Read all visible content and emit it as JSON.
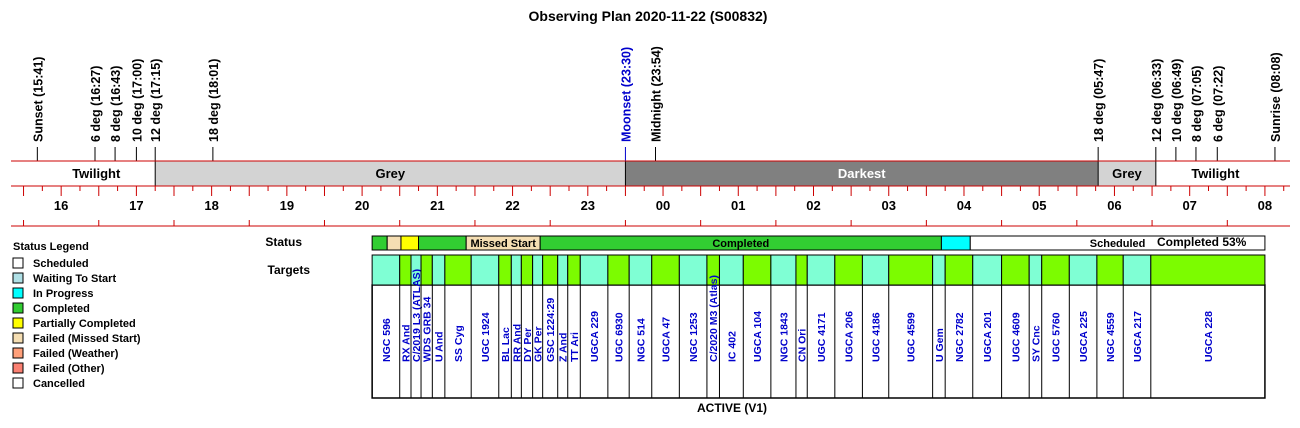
{
  "chart_data": {
    "type": "timeline",
    "title": "Observing Plan 2020-11-22 (S00832)",
    "footer": "ACTIVE (V1)",
    "completion_text": "Completed 53%",
    "row_labels": {
      "status": "Status",
      "targets": "Targets"
    },
    "colors": {
      "twilight": "#ffffff",
      "grey": "#d3d3d3",
      "darkest": "#808080",
      "completed": "#32cd32",
      "partially_completed": "#ffff00",
      "failed_missed_start": "#f5deb3",
      "in_progress": "#00ffff",
      "scheduled": "#ffffff",
      "target_a": "#7fffd4",
      "target_b": "#7cfc00",
      "axis_red": "#cc0000",
      "moon_blue": "#0000cc",
      "target_text": "#0000cc"
    },
    "time_axis": {
      "start": "15:20",
      "end": "08:20",
      "hour_labels": [
        "16",
        "17",
        "18",
        "19",
        "20",
        "21",
        "22",
        "23",
        "00",
        "01",
        "02",
        "03",
        "04",
        "05",
        "06",
        "07",
        "08"
      ]
    },
    "events": [
      {
        "label": "Sunset (15:41)",
        "time": "15:41"
      },
      {
        "label": "6 deg (16:27)",
        "time": "16:27"
      },
      {
        "label": "8 deg (16:43)",
        "time": "16:43"
      },
      {
        "label": "10 deg (17:00)",
        "time": "17:00"
      },
      {
        "label": "12 deg (17:15)",
        "time": "17:15"
      },
      {
        "label": "18 deg (18:01)",
        "time": "18:01"
      },
      {
        "label": "Moonset (23:30)",
        "time": "23:30",
        "color": "moon"
      },
      {
        "label": "Midnight (23:54)",
        "time": "23:54"
      },
      {
        "label": "18 deg (05:47)",
        "time": "05:47"
      },
      {
        "label": "12 deg (06:33)",
        "time": "06:33"
      },
      {
        "label": "10 deg (06:49)",
        "time": "06:49"
      },
      {
        "label": "8 deg (07:05)",
        "time": "07:05"
      },
      {
        "label": "6 deg (07:22)",
        "time": "07:22"
      },
      {
        "label": "Sunrise (08:08)",
        "time": "08:08"
      }
    ],
    "sky_bands": [
      {
        "label": "Twilight",
        "start": "15:41",
        "end": "17:15",
        "kind": "twilight"
      },
      {
        "label": "Grey",
        "start": "17:15",
        "end": "23:30",
        "kind": "grey"
      },
      {
        "label": "Darkest",
        "start": "23:30",
        "end": "05:47",
        "kind": "darkest"
      },
      {
        "label": "Grey",
        "start": "05:47",
        "end": "06:33",
        "kind": "grey"
      },
      {
        "label": "Twilight",
        "start": "06:33",
        "end": "08:08",
        "kind": "twilight"
      }
    ],
    "plan_window": {
      "start": "20:08",
      "end": "08:00"
    },
    "status_segments": [
      {
        "start": "20:08",
        "end": "20:20",
        "status": "completed",
        "label": ""
      },
      {
        "start": "20:20",
        "end": "20:31",
        "status": "failed_missed_start",
        "label": ""
      },
      {
        "start": "20:31",
        "end": "20:45",
        "status": "partially_completed",
        "label": ""
      },
      {
        "start": "20:45",
        "end": "21:23",
        "status": "completed",
        "label": ""
      },
      {
        "start": "21:23",
        "end": "22:22",
        "status": "failed_missed_start",
        "label": "Missed Start"
      },
      {
        "start": "22:22",
        "end": "03:42",
        "status": "completed",
        "label": "Completed"
      },
      {
        "start": "03:42",
        "end": "04:05",
        "status": "in_progress",
        "label": ""
      },
      {
        "start": "04:05",
        "end": "08:00",
        "status": "scheduled",
        "label": "Scheduled"
      }
    ],
    "targets": [
      {
        "name": "NGC 596",
        "start": "20:08",
        "end": "20:30",
        "shade": "a"
      },
      {
        "name": "RX And",
        "start": "20:30",
        "end": "20:39",
        "shade": "b"
      },
      {
        "name": "C/2019 L3 (ATLAS)",
        "start": "20:39",
        "end": "20:47",
        "shade": "a"
      },
      {
        "name": "WDS GRB 34",
        "start": "20:47",
        "end": "20:56",
        "shade": "b"
      },
      {
        "name": "U And",
        "start": "20:56",
        "end": "21:06",
        "shade": "a"
      },
      {
        "name": "SS Cyg",
        "start": "21:06",
        "end": "21:27",
        "shade": "b"
      },
      {
        "name": "UGC 1924",
        "start": "21:27",
        "end": "21:49",
        "shade": "a"
      },
      {
        "name": "BL Lac",
        "start": "21:49",
        "end": "21:59",
        "shade": "b"
      },
      {
        "name": "RR And",
        "start": "21:59",
        "end": "22:07",
        "shade": "a"
      },
      {
        "name": "DY Per",
        "start": "22:07",
        "end": "22:16",
        "shade": "b"
      },
      {
        "name": "GK Per",
        "start": "22:16",
        "end": "22:24",
        "shade": "a"
      },
      {
        "name": "GSC 1224:29",
        "start": "22:24",
        "end": "22:36",
        "shade": "b"
      },
      {
        "name": "Z And",
        "start": "22:36",
        "end": "22:44",
        "shade": "a"
      },
      {
        "name": "TT Ari",
        "start": "22:44",
        "end": "22:54",
        "shade": "b"
      },
      {
        "name": "UGCA 229",
        "start": "22:54",
        "end": "23:16",
        "shade": "a"
      },
      {
        "name": "UGC 6930",
        "start": "23:16",
        "end": "23:33",
        "shade": "b"
      },
      {
        "name": "NGC 514",
        "start": "23:33",
        "end": "23:51",
        "shade": "a"
      },
      {
        "name": "UGCA 47",
        "start": "23:51",
        "end": "24:13",
        "shade": "b"
      },
      {
        "name": "NGC 1253",
        "start": "24:13",
        "end": "24:35",
        "shade": "a"
      },
      {
        "name": "C/2020 M3 (Atlas)",
        "start": "24:35",
        "end": "24:45",
        "shade": "b"
      },
      {
        "name": "IC 402",
        "start": "24:45",
        "end": "25:04",
        "shade": "a"
      },
      {
        "name": "UGCA 104",
        "start": "25:04",
        "end": "25:26",
        "shade": "b"
      },
      {
        "name": "NGC 1843",
        "start": "25:26",
        "end": "25:46",
        "shade": "a"
      },
      {
        "name": "CN Ori",
        "start": "25:46",
        "end": "25:55",
        "shade": "b"
      },
      {
        "name": "UGC 4171",
        "start": "25:55",
        "end": "26:17",
        "shade": "a"
      },
      {
        "name": "UGCA 206",
        "start": "26:17",
        "end": "26:39",
        "shade": "b"
      },
      {
        "name": "UGC 4186",
        "start": "26:39",
        "end": "27:00",
        "shade": "a"
      },
      {
        "name": "UGC 4599",
        "start": "27:00",
        "end": "27:35",
        "shade": "b"
      },
      {
        "name": "U Gem",
        "start": "27:35",
        "end": "27:45",
        "shade": "a"
      },
      {
        "name": "NGC 2782",
        "start": "27:45",
        "end": "28:07",
        "shade": "b"
      },
      {
        "name": "UGCA 201",
        "start": "28:07",
        "end": "28:30",
        "shade": "a"
      },
      {
        "name": "UGC 4609",
        "start": "28:30",
        "end": "28:52",
        "shade": "b"
      },
      {
        "name": "SY Cnc",
        "start": "28:52",
        "end": "29:02",
        "shade": "a"
      },
      {
        "name": "UGC 5760",
        "start": "29:02",
        "end": "29:24",
        "shade": "b"
      },
      {
        "name": "UGCA 225",
        "start": "29:24",
        "end": "29:46",
        "shade": "a"
      },
      {
        "name": "NGC 4559",
        "start": "29:46",
        "end": "30:07",
        "shade": "b"
      },
      {
        "name": "UGCA 217",
        "start": "30:07",
        "end": "30:29",
        "shade": "a"
      },
      {
        "name": "UGCA 228",
        "start": "30:29",
        "end": "32:00",
        "shade": "b"
      }
    ],
    "legend": {
      "title": "Status Legend",
      "entries": [
        {
          "label": "Scheduled",
          "color": "#ffffff"
        },
        {
          "label": "Waiting To Start",
          "color": "#b0e0e6"
        },
        {
          "label": "In Progress",
          "color": "#00ffff"
        },
        {
          "label": "Completed",
          "color": "#32cd32"
        },
        {
          "label": "Partially Completed",
          "color": "#ffff00"
        },
        {
          "label": "Failed (Missed Start)",
          "color": "#f5deb3"
        },
        {
          "label": "Failed (Weather)",
          "color": "#ffa07a"
        },
        {
          "label": "Failed (Other)",
          "color": "#fa8072"
        },
        {
          "label": "Cancelled",
          "color": "#ffffff"
        }
      ]
    }
  }
}
